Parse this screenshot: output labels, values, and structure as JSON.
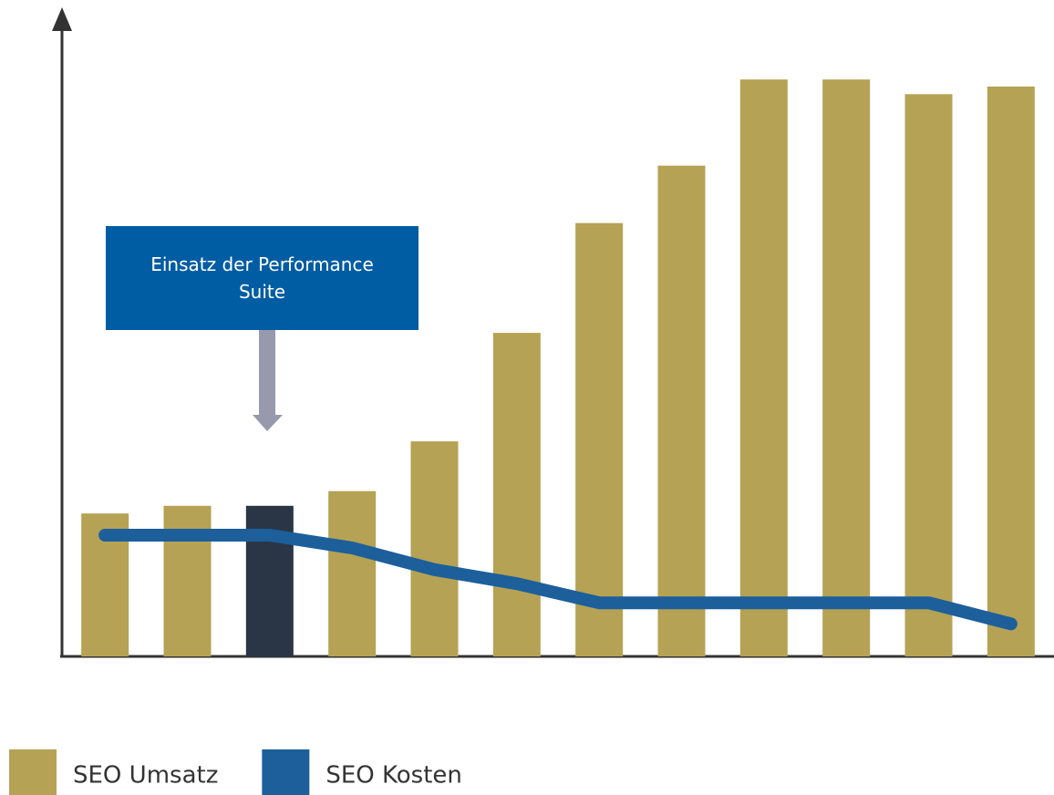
{
  "chart_data": {
    "type": "bar_line",
    "annotation": "Einsatz der Performance Suite",
    "categories": [
      null,
      null,
      null,
      null,
      null,
      null,
      null,
      null,
      null,
      null,
      null,
      null
    ],
    "ylim": [
      0,
      100
    ],
    "series": [
      {
        "name": "SEO Umsatz",
        "type": "bar",
        "color": "#b5a254",
        "colors": [
          "#b5a254",
          "#b5a254",
          "#2a3645",
          "#b5a254",
          "#b5a254",
          "#b5a254",
          "#b5a254",
          "#b5a254",
          "#b5a254",
          "#b5a254",
          "#b5a254",
          "#b5a254"
        ],
        "values": [
          22.4,
          23.6,
          23.6,
          25.9,
          33.7,
          50.7,
          67.9,
          76.9,
          90.4,
          90.4,
          88.1,
          89.3
        ]
      },
      {
        "name": "SEO Kosten",
        "type": "line",
        "color": "#1c5f9b",
        "values": [
          19,
          19,
          19,
          17,
          13.6,
          11.4,
          8.4,
          8.4,
          8.4,
          8.4,
          8.4,
          5.1
        ]
      }
    ]
  }
}
